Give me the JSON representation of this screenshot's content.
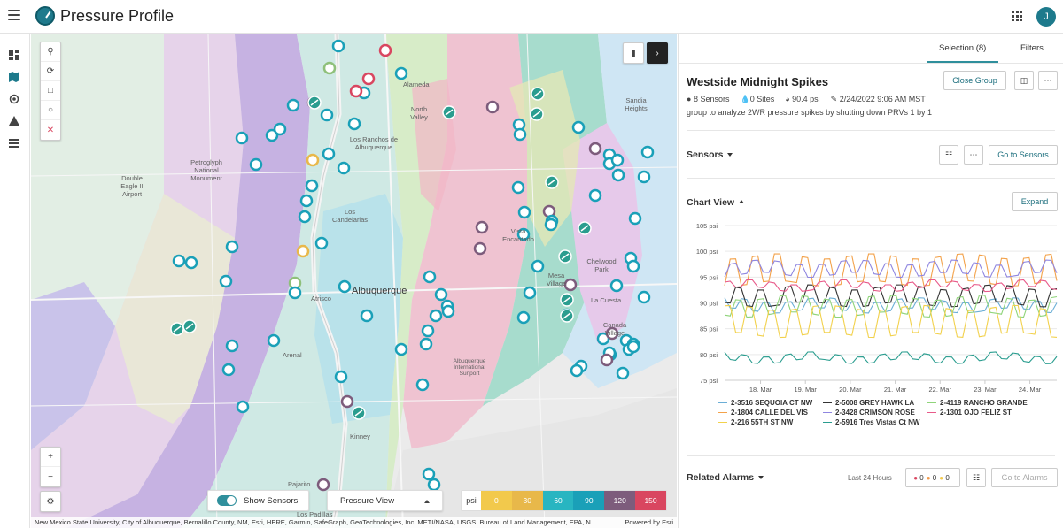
{
  "app": {
    "title": "Pressure Profile",
    "avatar_initial": "J"
  },
  "icons": {
    "menu": "hamburger-icon",
    "apps": "apps-grid-icon",
    "nav": [
      "dashboard-icon",
      "map-icon",
      "location-icon",
      "warning-icon",
      "list-icon"
    ],
    "map_tools": [
      "search-icon",
      "lasso-icon",
      "rectangle-select-icon",
      "circle-select-icon",
      "close-icon"
    ],
    "zoom": [
      "zoom-in-icon",
      "zoom-out-icon"
    ],
    "settings": "gear-icon"
  },
  "map": {
    "labels": [
      {
        "text": "Alameda"
      },
      {
        "text": "North Valley"
      },
      {
        "text": "Sandia Heights"
      },
      {
        "text": "Los Ranchos de Albuquerque"
      },
      {
        "text": "Double Eagle II Airport"
      },
      {
        "text": "Petroglyph National Monument"
      },
      {
        "text": "Los Candelarias"
      },
      {
        "text": "Vista Encantado"
      },
      {
        "text": "Chelwood Park"
      },
      {
        "text": "Mesa Village"
      },
      {
        "text": "La Cuesta"
      },
      {
        "text": "Atrisco"
      },
      {
        "text": "Canada Village"
      },
      {
        "text": "Arenal"
      },
      {
        "text": "Albuquerque International Sunport"
      },
      {
        "text": "Kinney"
      },
      {
        "text": "Pajarito"
      },
      {
        "text": "Los Padillas"
      }
    ],
    "city_label": "Albuquerque",
    "show_sensors_label": "Show Sensors",
    "view_select": "Pressure View",
    "legend": {
      "unit": "psi",
      "stops": [
        {
          "label": "0",
          "color": "#f2c94c"
        },
        {
          "label": "30",
          "color": "#e8b84a"
        },
        {
          "label": "60",
          "color": "#28b5c1"
        },
        {
          "label": "90",
          "color": "#1aa0b8"
        },
        {
          "label": "120",
          "color": "#7d5c7c"
        },
        {
          "label": "150",
          "color": "#d94660"
        }
      ]
    },
    "attribution": "New Mexico State University, City of Albuquerque, Bernalillo County, NM, Esri, HERE, Garmin, SafeGraph, GeoTechnologies, Inc, METI/NASA, USGS, Bureau of Land Management, EPA, N...",
    "powered_by": "Powered by Esri"
  },
  "panel": {
    "tabs": [
      {
        "label": "Selection (8)"
      },
      {
        "label": "Filters"
      }
    ],
    "group": {
      "title": "Westside Midnight Spikes",
      "close_label": "Close Group",
      "sensors": "8 Sensors",
      "sites": "0 Sites",
      "pressure": "90.4 psi",
      "date": "2/24/2022 9:06 AM MST",
      "description": "group to analyze 2WR pressure spikes by shutting down PRVs 1 by 1"
    },
    "sensors_section": {
      "title": "Sensors",
      "go_label": "Go to Sensors"
    },
    "chart_section": {
      "title": "Chart View",
      "expand_label": "Expand"
    },
    "alarms_section": {
      "title": "Related Alarms",
      "range": "Last 24 Hours",
      "counts": [
        {
          "value": "0",
          "color": "#d94660"
        },
        {
          "value": "0",
          "color": "#f2994a"
        },
        {
          "value": "0",
          "color": "#f2c94c"
        }
      ],
      "go_label": "Go to Alarms"
    }
  },
  "chart_data": {
    "type": "line",
    "title": "",
    "xlabel": "",
    "ylabel": "",
    "x_ticks": [
      "18. Mar",
      "19. Mar",
      "20. Mar",
      "21. Mar",
      "22. Mar",
      "23. Mar",
      "24. Mar"
    ],
    "y_ticks": [
      "75 psi",
      "80 psi",
      "85 psi",
      "90 psi",
      "95 psi",
      "100 psi",
      "105 psi"
    ],
    "ylim": [
      75,
      105
    ],
    "x_range_days": [
      17.2,
      24.6
    ],
    "grid": true,
    "legend_position": "bottom",
    "series": [
      {
        "name": "2-3516 SEQUOIA CT NW",
        "color": "#6baed6",
        "base": 89,
        "amp": 1.5
      },
      {
        "name": "2-5008 GREY HAWK LA",
        "color": "#333333",
        "base": 90.5,
        "amp": 2.5
      },
      {
        "name": "2-4119 RANCHO GRANDE",
        "color": "#8fd47a",
        "base": 88.5,
        "amp": 2.5
      },
      {
        "name": "2-1804 CALLE DEL VIS",
        "color": "#f3a24a",
        "base": 95,
        "amp": 4
      },
      {
        "name": "2-3428 CRIMSON ROSE",
        "color": "#8f86e0",
        "base": 96,
        "amp": 1.8
      },
      {
        "name": "2-1301 OJO FELIZ ST",
        "color": "#e85a8a",
        "base": 93,
        "amp": 1
      },
      {
        "name": "2-216 55TH ST NW",
        "color": "#f2d14c",
        "base": 85,
        "amp": 4
      },
      {
        "name": "2-5916 Tres Vistas Ct NW",
        "color": "#2a9d8f",
        "base": 79,
        "amp": 1
      }
    ]
  }
}
